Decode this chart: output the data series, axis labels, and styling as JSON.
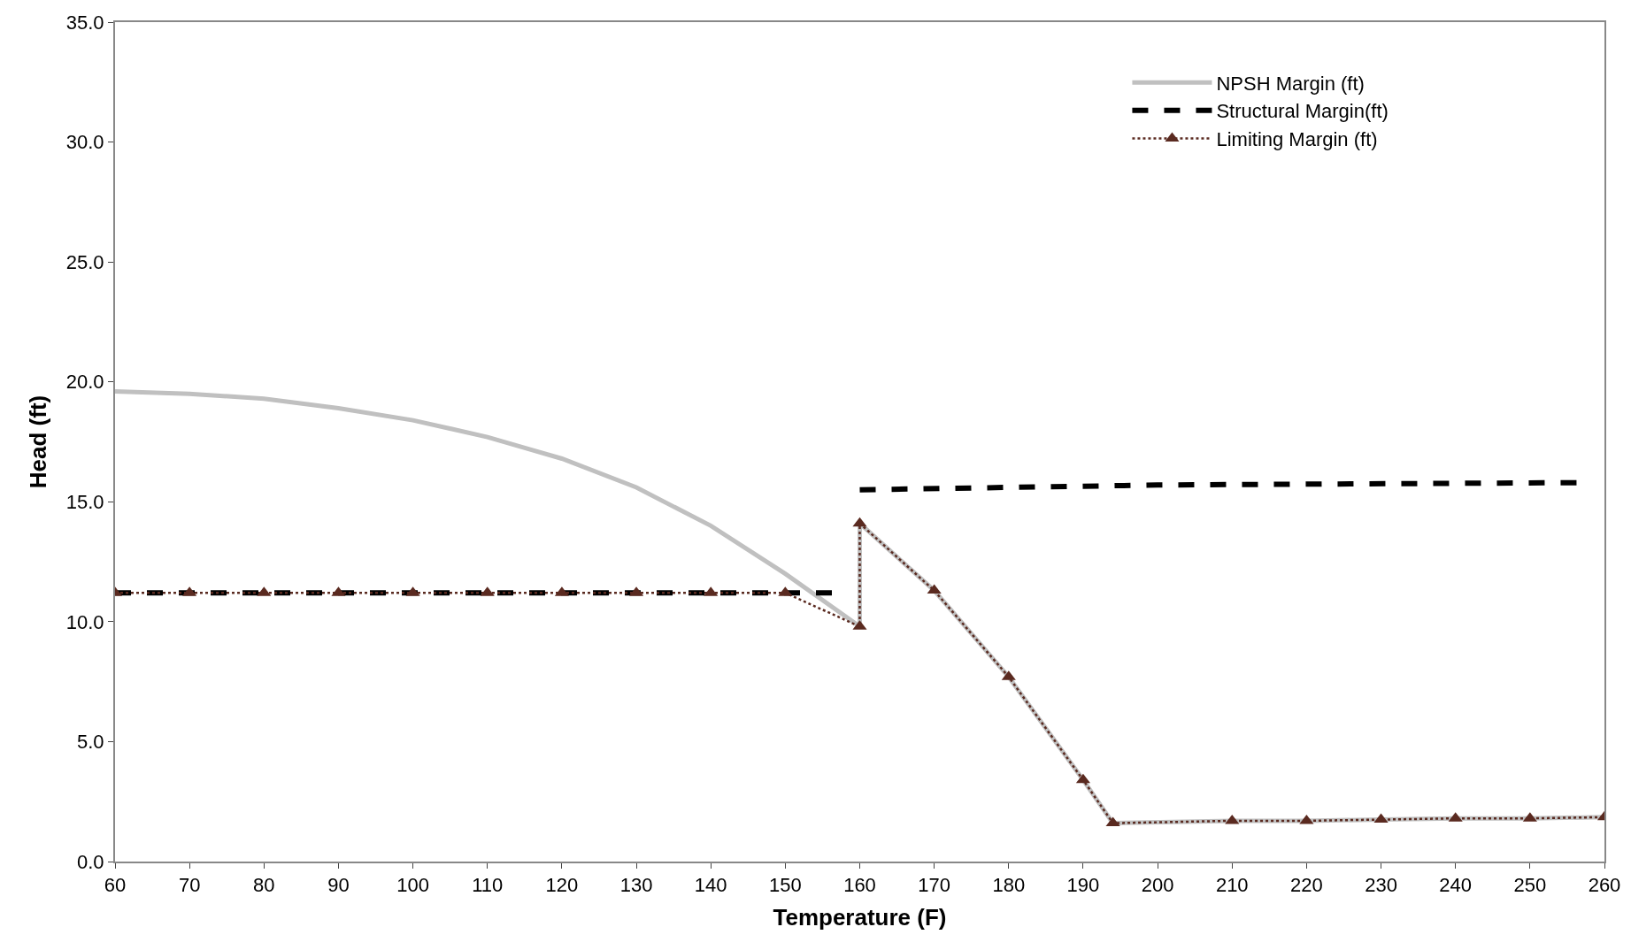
{
  "chart_data": {
    "type": "line",
    "xlabel": "Temperature (F)",
    "ylabel": "Head (ft)",
    "xlim": [
      60,
      260
    ],
    "xticks": [
      60,
      70,
      80,
      90,
      100,
      110,
      120,
      130,
      140,
      150,
      160,
      170,
      180,
      190,
      200,
      210,
      220,
      230,
      240,
      250,
      260
    ],
    "ylim": [
      0,
      35
    ],
    "yticks": [
      {
        "value": 0,
        "label": "0.0"
      },
      {
        "value": 5,
        "label": "5.0"
      },
      {
        "value": 10,
        "label": "10.0"
      },
      {
        "value": 15,
        "label": "15.0"
      },
      {
        "value": 20,
        "label": "20.0"
      },
      {
        "value": 25,
        "label": "25.0"
      },
      {
        "value": 30,
        "label": "30.0"
      },
      {
        "value": 35,
        "label": "35.0"
      }
    ],
    "grid": false,
    "legend": "top right",
    "series": [
      {
        "name": "NPSH Margin (ft)",
        "color": "#c0c0c0",
        "line_style": "solid",
        "marker": "none",
        "x": [
          60,
          70,
          80,
          90,
          100,
          110,
          120,
          130,
          140,
          150,
          160,
          160,
          170,
          180,
          190,
          194,
          210,
          220,
          230,
          240,
          250,
          260
        ],
        "values": [
          19.6,
          19.5,
          19.3,
          18.9,
          18.4,
          17.7,
          16.8,
          15.6,
          14.0,
          12.0,
          9.8,
          14.1,
          11.3,
          7.7,
          3.4,
          1.6,
          1.7,
          1.7,
          1.75,
          1.8,
          1.8,
          1.85
        ]
      },
      {
        "name": "Structural Margin(ft)",
        "color": "#000000",
        "line_style": "dashed",
        "marker": "none",
        "x": [
          60,
          157,
          158,
          160,
          200,
          257
        ],
        "values": [
          11.2,
          11.2,
          null,
          15.5,
          15.7,
          15.8
        ]
      },
      {
        "name": "Limiting Margin (ft)",
        "color": "#5a2a20",
        "line_style": "dotted",
        "marker": "triangle",
        "x": [
          60,
          70,
          80,
          90,
          100,
          110,
          120,
          130,
          140,
          150,
          160,
          160,
          170,
          180,
          190,
          194,
          210,
          220,
          230,
          240,
          250,
          260
        ],
        "values": [
          11.2,
          11.2,
          11.2,
          11.2,
          11.2,
          11.2,
          11.2,
          11.2,
          11.2,
          11.2,
          9.8,
          14.1,
          11.3,
          7.7,
          3.4,
          1.6,
          1.7,
          1.7,
          1.75,
          1.8,
          1.8,
          1.85
        ]
      }
    ]
  }
}
